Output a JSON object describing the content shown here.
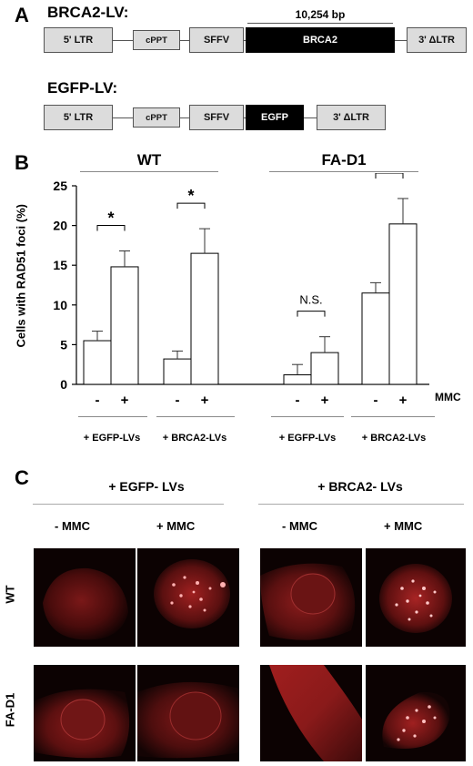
{
  "panelA": {
    "letter": "A",
    "brca2": {
      "title": "BRCA2-LV:",
      "size_label": "10,254 bp",
      "ltr5": "5' LTR",
      "cppt": "cPPT",
      "sffv": "SFFV",
      "gene": "BRCA2",
      "ltr3": "3' ΔLTR"
    },
    "egfp": {
      "title": "EGFP-LV:",
      "ltr5": "5' LTR",
      "cppt": "cPPT",
      "sffv": "SFFV",
      "gene": "EGFP",
      "ltr3": "3' ΔLTR"
    }
  },
  "panelB": {
    "letter": "B",
    "group_wt": "WT",
    "group_fad1": "FA-D1",
    "mmc_label": "MMC",
    "treatments": [
      "+ EGFP-LVs",
      "+ BRCA2-LVs",
      "+ EGFP-LVs",
      "+ BRCA2-LVs"
    ],
    "minus": "-",
    "plus": "+",
    "star": "*",
    "ns": "N.S."
  },
  "chart_data": {
    "type": "bar",
    "ylabel": "Cells with RAD51 foci (%)",
    "ylim": [
      0,
      25
    ],
    "yticks": [
      0,
      5,
      10,
      15,
      20,
      25
    ],
    "categories": [
      "-",
      "+",
      "-",
      "+",
      "-",
      "+",
      "-",
      "+"
    ],
    "groups": [
      "WT + EGFP-LVs",
      "WT + BRCA2-LVs",
      "FA-D1 + EGFP-LVs",
      "FA-D1 + BRCA2-LVs"
    ],
    "values": [
      5.5,
      14.8,
      3.2,
      16.5,
      1.2,
      4.0,
      11.5,
      20.2
    ],
    "errors": [
      1.2,
      2.0,
      1.0,
      3.1,
      1.3,
      2.0,
      1.3,
      3.2
    ],
    "significance": [
      "*",
      "*",
      "N.S.",
      "*"
    ]
  },
  "panelC": {
    "letter": "C",
    "col_group_1": "+ EGFP- LVs",
    "col_group_2": "+ BRCA2- LVs",
    "minus_mmc": "- MMC",
    "plus_mmc": "+ MMC",
    "row_wt": "WT",
    "row_fad1": "FA-D1"
  }
}
